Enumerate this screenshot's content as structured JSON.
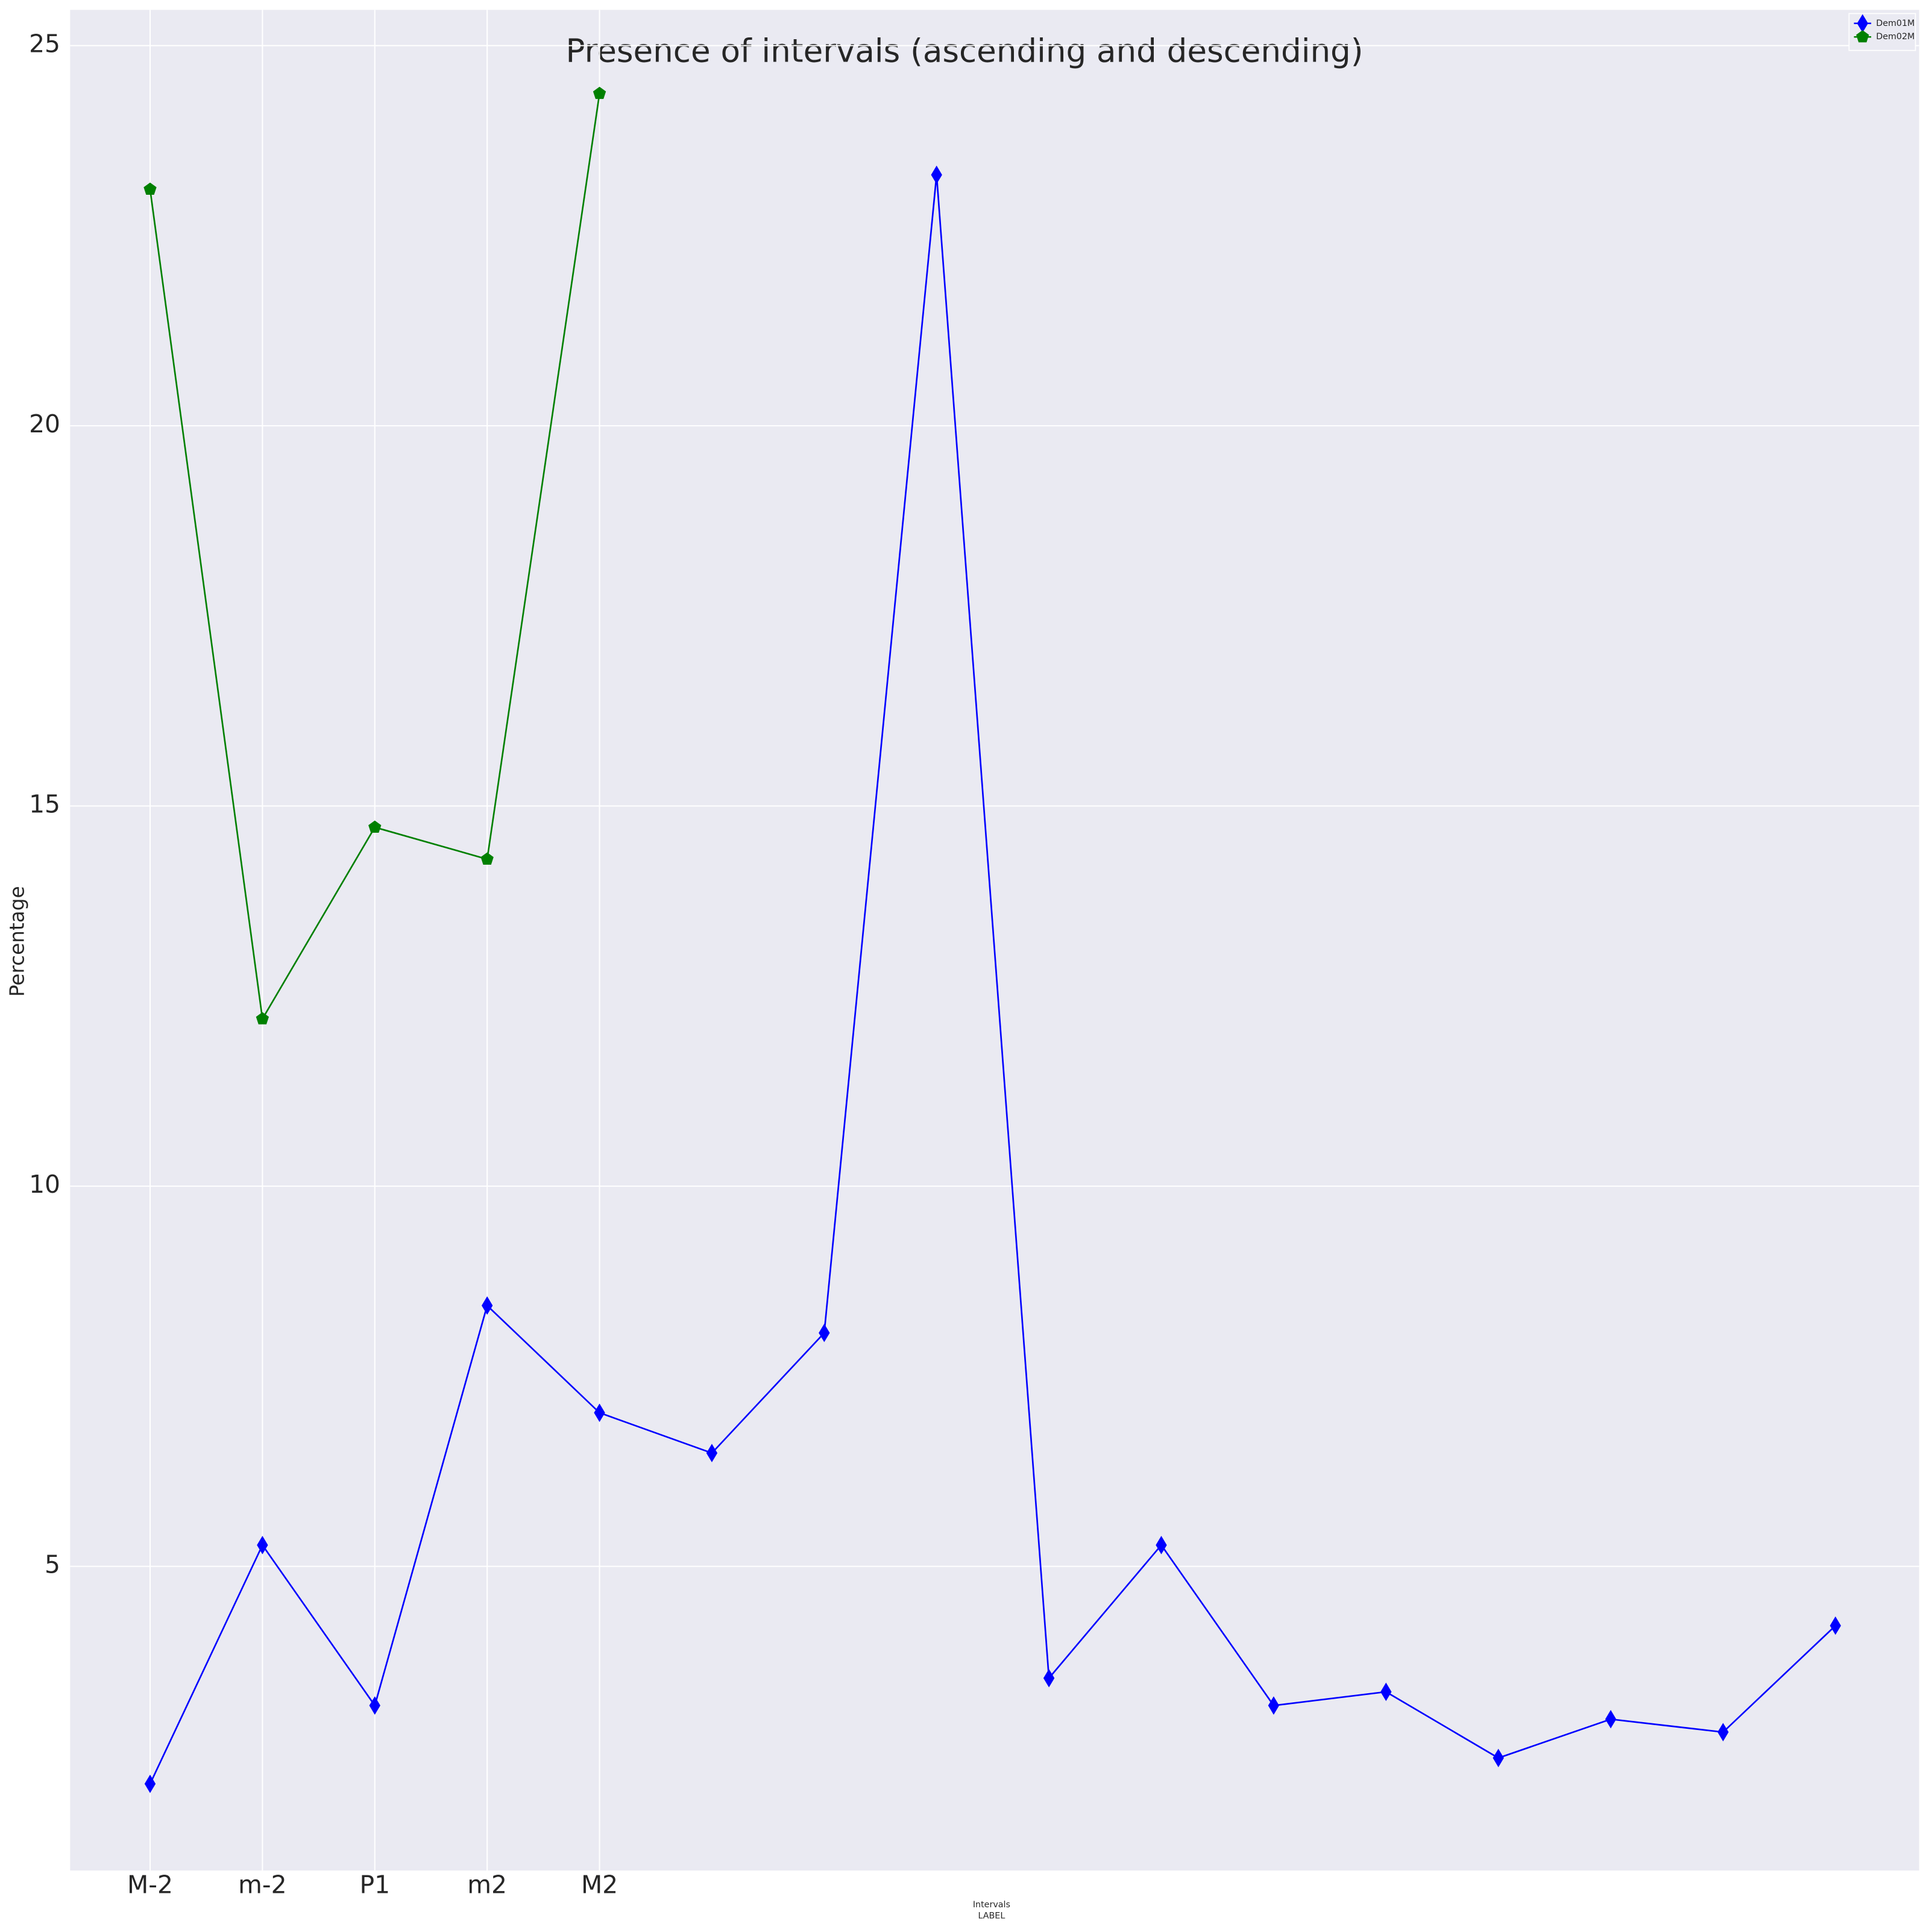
{
  "chart_data": {
    "type": "line",
    "title": "Presence of intervals (ascending and descending)",
    "ylabel": "Percentage",
    "xlabel": [
      "Intervals",
      "LABEL"
    ],
    "categories": [
      "M-2",
      "m-2",
      "P1",
      "m2",
      "M2",
      null,
      null,
      null,
      null,
      null,
      null,
      null,
      null,
      null,
      null,
      null
    ],
    "series": [
      {
        "name": "Dem01M",
        "color": "#0000ff",
        "marker": "thin_diamond",
        "values": [
          2.14,
          5.28,
          3.17,
          8.43,
          7.02,
          6.49,
          8.07,
          23.3,
          3.53,
          5.28,
          3.17,
          3.35,
          2.48,
          2.99,
          2.82,
          4.22
        ]
      },
      {
        "name": "Dem02M",
        "color": "#008000",
        "marker": "pentagon",
        "values": [
          23.11,
          12.2,
          14.72,
          14.3,
          24.37,
          null,
          null,
          null,
          null,
          null,
          null,
          null,
          null,
          null,
          null,
          null
        ]
      }
    ],
    "ylim": [
      1.0,
      25.47
    ],
    "yticks": [
      5,
      10,
      15,
      20,
      25
    ],
    "grid": true,
    "legend": "upper right"
  }
}
